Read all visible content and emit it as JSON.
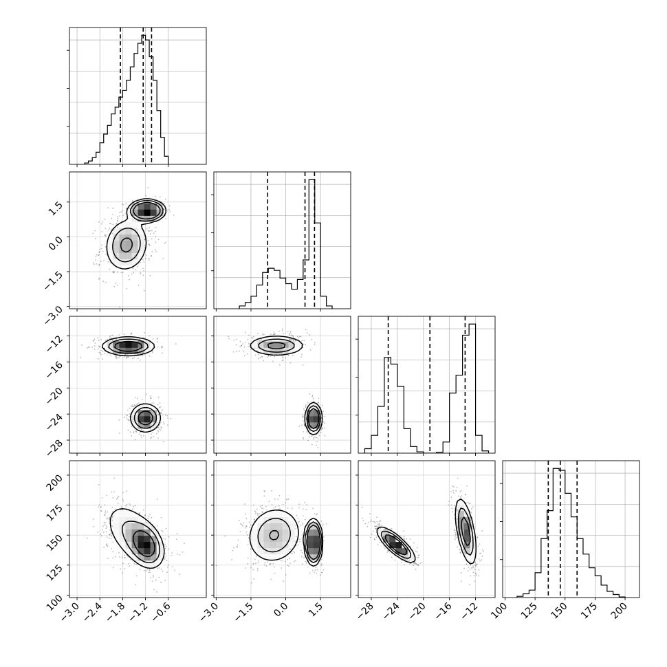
{
  "chart_data": {
    "type": "corner",
    "description_series": "corner plot of 4 parameters: 1-D histograms on the diagonal, 2-D density + contours below",
    "params": [
      {
        "range": [
          -3.2,
          0.4
        ],
        "ticks": [
          -3.0,
          -2.4,
          -1.8,
          -1.2,
          -0.6
        ],
        "tick_labels": [
          "−3.0",
          "−2.4",
          "−1.8",
          "−1.2",
          "−0.6"
        ]
      },
      {
        "range": [
          -3.1,
          2.8
        ],
        "ticks": [
          -3.0,
          -1.5,
          0.0,
          1.5
        ],
        "tick_labels": [
          "−3.0",
          "−1.5",
          "0.0",
          "1.5"
        ]
      },
      {
        "range": [
          -30,
          -9
        ],
        "ticks": [
          -28,
          -24,
          -20,
          -16,
          -12
        ],
        "tick_labels": [
          "−28",
          "−24",
          "−20",
          "−16",
          "−12"
        ]
      },
      {
        "range": [
          98,
          212
        ],
        "ticks": [
          100,
          125,
          150,
          175,
          200
        ],
        "tick_labels": [
          "100",
          "125",
          "150",
          "175",
          "200"
        ]
      }
    ],
    "quantiles": [
      [
        -1.86,
        -1.26,
        -1.04
      ],
      [
        -0.78,
        0.83,
        1.24
      ],
      [
        -25.4,
        -19.0,
        -13.6
      ],
      [
        136.0,
        146.0,
        160.0
      ]
    ],
    "histograms": [
      {
        "edges": [
          -2.8,
          -2.7,
          -2.6,
          -2.5,
          -2.4,
          -2.3,
          -2.2,
          -2.1,
          -2.0,
          -1.9,
          -1.8,
          -1.7,
          -1.6,
          -1.5,
          -1.4,
          -1.3,
          -1.2,
          -1.1,
          -1.0,
          -0.9,
          -0.8,
          -0.7,
          -0.6
        ],
        "counts": [
          2,
          5,
          10,
          18,
          32,
          45,
          58,
          75,
          85,
          100,
          110,
          125,
          145,
          165,
          180,
          192,
          185,
          160,
          125,
          80,
          40,
          12
        ]
      },
      {
        "edges": [
          -2.0,
          -1.75,
          -1.5,
          -1.25,
          -1.0,
          -0.75,
          -0.5,
          -0.25,
          0.0,
          0.25,
          0.5,
          0.75,
          1.0,
          1.25,
          1.5,
          1.75,
          2.0
        ],
        "counts": [
          4,
          9,
          18,
          34,
          52,
          58,
          55,
          44,
          36,
          28,
          42,
          70,
          185,
          123,
          18,
          4
        ]
      },
      {
        "edges": [
          -29.0,
          -28.0,
          -27.0,
          -26.0,
          -25.0,
          -24.0,
          -23.0,
          -22.0,
          -21.0,
          -20.0,
          -19.0,
          -18.0,
          -17.0,
          -16.0,
          -15.0,
          -14.0,
          -13.0,
          -12.0,
          -11.0,
          -10.0
        ],
        "counts": [
          10,
          40,
          105,
          215,
          200,
          150,
          55,
          15,
          3,
          0,
          0,
          2,
          25,
          135,
          175,
          265,
          290,
          40,
          5
        ]
      },
      {
        "edges": [
          110,
          115,
          120,
          125,
          130,
          135,
          140,
          145,
          150,
          155,
          160,
          165,
          170,
          175,
          180,
          185,
          190,
          195,
          200
        ],
        "counts": [
          2,
          6,
          12,
          40,
          95,
          140,
          208,
          205,
          168,
          130,
          95,
          70,
          48,
          35,
          20,
          10,
          5,
          1
        ]
      }
    ],
    "pairs": [
      {
        "row": 1,
        "col": 0,
        "modes": [
          {
            "mx": -1.16,
            "my": 1.13,
            "sx": 0.22,
            "sy": 0.22,
            "rho": 0.0,
            "w": 0.45
          },
          {
            "mx": -1.7,
            "my": -0.35,
            "sx": 0.3,
            "sy": 0.6,
            "rho": 0.1,
            "w": 0.55
          }
        ]
      },
      {
        "row": 2,
        "col": 0,
        "modes": [
          {
            "mx": -1.65,
            "my": -13.6,
            "sx": 0.34,
            "sy": 0.7,
            "rho": 0.0,
            "w": 0.55
          },
          {
            "mx": -1.2,
            "my": -24.6,
            "sx": 0.2,
            "sy": 1.1,
            "rho": 0.0,
            "w": 0.45
          }
        ]
      },
      {
        "row": 3,
        "col": 0,
        "modes": [
          {
            "mx": -1.5,
            "my": 150,
            "sx": 0.4,
            "sy": 14,
            "rho": -0.5,
            "w": 0.55
          },
          {
            "mx": -1.2,
            "my": 142,
            "sx": 0.2,
            "sy": 8,
            "rho": -0.3,
            "w": 0.45
          }
        ]
      },
      {
        "row": 2,
        "col": 1,
        "modes": [
          {
            "mx": -0.4,
            "my": -13.5,
            "sx": 0.6,
            "sy": 0.75,
            "rho": 0.0,
            "w": 0.55
          },
          {
            "mx": 1.2,
            "my": -24.7,
            "sx": 0.16,
            "sy": 1.1,
            "rho": 0.0,
            "w": 0.45
          }
        ]
      },
      {
        "row": 3,
        "col": 1,
        "modes": [
          {
            "mx": -0.5,
            "my": 150,
            "sx": 0.6,
            "sy": 12,
            "rho": 0.1,
            "w": 0.55
          },
          {
            "mx": 1.2,
            "my": 144,
            "sx": 0.16,
            "sy": 8,
            "rho": 0.0,
            "w": 0.45
          }
        ]
      },
      {
        "row": 3,
        "col": 2,
        "modes": [
          {
            "mx": -24.2,
            "my": 142,
            "sx": 1.4,
            "sy": 7,
            "rho": -0.8,
            "w": 0.55
          },
          {
            "mx": -13.5,
            "my": 153,
            "sx": 0.8,
            "sy": 14,
            "rho": -0.55,
            "w": 0.45
          }
        ]
      }
    ]
  }
}
